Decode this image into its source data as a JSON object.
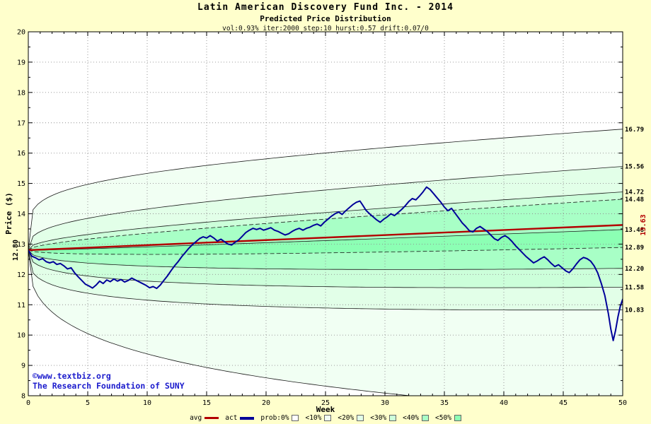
{
  "header": {
    "title": "Latin American Discovery Fund Inc. - 2014",
    "subtitle": "Predicted Price Distribution",
    "params": "vol:0.93% iter:2000 step:10 hurst:0.57 drift:0.07/0"
  },
  "watermark": {
    "line1": "©www.textbiz.org",
    "line2": "The Research Foundation of SUNY",
    "color": "#1c1ccd"
  },
  "chart_data": {
    "type": "line",
    "title": "Latin American Discovery Fund Inc. - 2014",
    "subtitle": "Predicted Price Distribution",
    "xlabel": "Week",
    "ylabel": "Price ($)",
    "xlim": [
      0,
      50
    ],
    "ylim": [
      8,
      20
    ],
    "x_ticks": [
      0,
      5,
      10,
      15,
      20,
      25,
      30,
      35,
      40,
      45,
      50
    ],
    "y_ticks": [
      8,
      9,
      10,
      11,
      12,
      13,
      14,
      15,
      16,
      17,
      18,
      19,
      20
    ],
    "grid": true,
    "legend_position": "bottom",
    "colors": {
      "page_bg": "#ffffcc",
      "plot_bg": "#ffffff",
      "grid": "#8f8f8f",
      "frame": "#000000"
    },
    "avg": {
      "label": "avg",
      "color": "#b30000",
      "start": 12.8,
      "end": 13.63,
      "start_label": "12.80",
      "end_label": "13.63"
    },
    "bands": {
      "line_color": "#1a1a1a",
      "fill_colors": [
        "#f1fff3",
        "#e2ffe8",
        "#ccffda",
        "#a8ffc6",
        "#8cffb4",
        "#a8ffc6",
        "#ccffda",
        "#e2ffe8",
        "#f1fff3"
      ],
      "curves": [
        {
          "end": 16.79,
          "exp": 0.18,
          "label": "16.79",
          "dashed": false
        },
        {
          "end": 15.56,
          "exp": 0.3,
          "label": "15.56",
          "dashed": false
        },
        {
          "end": 14.72,
          "exp": 0.4,
          "label": "14.72",
          "dashed": false
        },
        {
          "end": 14.48,
          "exp": 0.48,
          "label": "14.48",
          "dashed": true
        },
        {
          "end": 13.48,
          "exp": 0.6,
          "label": "13.48",
          "dashed": false
        },
        {
          "end": 12.89,
          "exp": 0.55,
          "label": "12.89",
          "dashed": true
        },
        {
          "end": 12.2,
          "exp": 0.45,
          "label": "12.20",
          "dashed": false
        },
        {
          "end": 11.58,
          "exp": 0.34,
          "label": "11.58",
          "dashed": false
        },
        {
          "end": 10.83,
          "exp": 0.27,
          "label": "10.83",
          "dashed": false
        },
        {
          "end": 7.43,
          "exp": 0.34,
          "label": null,
          "dashed": false
        }
      ]
    },
    "actual": {
      "label": "act",
      "color": "#000099",
      "points": [
        [
          0,
          12.8
        ],
        [
          0.3,
          12.6
        ],
        [
          0.6,
          12.55
        ],
        [
          0.9,
          12.48
        ],
        [
          1.2,
          12.52
        ],
        [
          1.5,
          12.42
        ],
        [
          1.8,
          12.38
        ],
        [
          2.1,
          12.42
        ],
        [
          2.4,
          12.33
        ],
        [
          2.7,
          12.36
        ],
        [
          3.0,
          12.28
        ],
        [
          3.3,
          12.18
        ],
        [
          3.6,
          12.22
        ],
        [
          3.9,
          12.05
        ],
        [
          4.2,
          11.92
        ],
        [
          4.5,
          11.8
        ],
        [
          4.8,
          11.68
        ],
        [
          5.1,
          11.62
        ],
        [
          5.4,
          11.55
        ],
        [
          5.7,
          11.65
        ],
        [
          6.0,
          11.78
        ],
        [
          6.3,
          11.7
        ],
        [
          6.6,
          11.82
        ],
        [
          6.9,
          11.76
        ],
        [
          7.2,
          11.85
        ],
        [
          7.5,
          11.78
        ],
        [
          7.8,
          11.83
        ],
        [
          8.1,
          11.75
        ],
        [
          8.4,
          11.8
        ],
        [
          8.7,
          11.88
        ],
        [
          9.0,
          11.82
        ],
        [
          9.3,
          11.76
        ],
        [
          9.6,
          11.7
        ],
        [
          9.9,
          11.64
        ],
        [
          10.2,
          11.56
        ],
        [
          10.5,
          11.6
        ],
        [
          10.8,
          11.54
        ],
        [
          11.1,
          11.65
        ],
        [
          11.4,
          11.8
        ],
        [
          11.7,
          11.95
        ],
        [
          12.0,
          12.12
        ],
        [
          12.3,
          12.28
        ],
        [
          12.6,
          12.42
        ],
        [
          12.9,
          12.58
        ],
        [
          13.2,
          12.72
        ],
        [
          13.5,
          12.86
        ],
        [
          13.8,
          12.98
        ],
        [
          14.1,
          13.08
        ],
        [
          14.4,
          13.18
        ],
        [
          14.7,
          13.24
        ],
        [
          15.0,
          13.2
        ],
        [
          15.3,
          13.28
        ],
        [
          15.6,
          13.2
        ],
        [
          15.9,
          13.1
        ],
        [
          16.2,
          13.16
        ],
        [
          16.5,
          13.08
        ],
        [
          16.8,
          13.0
        ],
        [
          17.1,
          12.97
        ],
        [
          17.4,
          13.06
        ],
        [
          17.7,
          13.14
        ],
        [
          18.0,
          13.26
        ],
        [
          18.3,
          13.38
        ],
        [
          18.6,
          13.46
        ],
        [
          18.9,
          13.52
        ],
        [
          19.2,
          13.48
        ],
        [
          19.5,
          13.52
        ],
        [
          19.8,
          13.46
        ],
        [
          20.1,
          13.5
        ],
        [
          20.4,
          13.54
        ],
        [
          20.7,
          13.46
        ],
        [
          21.0,
          13.42
        ],
        [
          21.3,
          13.36
        ],
        [
          21.6,
          13.3
        ],
        [
          21.9,
          13.34
        ],
        [
          22.2,
          13.42
        ],
        [
          22.5,
          13.48
        ],
        [
          22.8,
          13.52
        ],
        [
          23.1,
          13.46
        ],
        [
          23.4,
          13.52
        ],
        [
          23.7,
          13.56
        ],
        [
          24.0,
          13.62
        ],
        [
          24.3,
          13.66
        ],
        [
          24.6,
          13.6
        ],
        [
          24.9,
          13.72
        ],
        [
          25.2,
          13.82
        ],
        [
          25.5,
          13.92
        ],
        [
          25.8,
          14.0
        ],
        [
          26.1,
          14.06
        ],
        [
          26.4,
          13.98
        ],
        [
          26.7,
          14.1
        ],
        [
          27.0,
          14.2
        ],
        [
          27.3,
          14.3
        ],
        [
          27.6,
          14.38
        ],
        [
          27.9,
          14.42
        ],
        [
          28.1,
          14.3
        ],
        [
          28.4,
          14.12
        ],
        [
          28.7,
          14.0
        ],
        [
          29.0,
          13.9
        ],
        [
          29.3,
          13.8
        ],
        [
          29.6,
          13.72
        ],
        [
          29.9,
          13.82
        ],
        [
          30.2,
          13.9
        ],
        [
          30.5,
          14.0
        ],
        [
          30.8,
          13.94
        ],
        [
          31.1,
          14.04
        ],
        [
          31.4,
          14.14
        ],
        [
          31.7,
          14.26
        ],
        [
          32.0,
          14.4
        ],
        [
          32.3,
          14.5
        ],
        [
          32.6,
          14.46
        ],
        [
          32.9,
          14.58
        ],
        [
          33.2,
          14.72
        ],
        [
          33.5,
          14.88
        ],
        [
          33.8,
          14.8
        ],
        [
          34.1,
          14.66
        ],
        [
          34.4,
          14.52
        ],
        [
          34.7,
          14.38
        ],
        [
          35.0,
          14.22
        ],
        [
          35.3,
          14.1
        ],
        [
          35.6,
          14.18
        ],
        [
          35.9,
          14.02
        ],
        [
          36.2,
          13.86
        ],
        [
          36.5,
          13.7
        ],
        [
          36.8,
          13.58
        ],
        [
          37.1,
          13.44
        ],
        [
          37.4,
          13.4
        ],
        [
          37.7,
          13.52
        ],
        [
          38.0,
          13.58
        ],
        [
          38.3,
          13.5
        ],
        [
          38.6,
          13.42
        ],
        [
          38.9,
          13.3
        ],
        [
          39.2,
          13.18
        ],
        [
          39.5,
          13.12
        ],
        [
          39.8,
          13.22
        ],
        [
          40.1,
          13.28
        ],
        [
          40.4,
          13.2
        ],
        [
          40.7,
          13.08
        ],
        [
          41.0,
          12.94
        ],
        [
          41.3,
          12.82
        ],
        [
          41.6,
          12.7
        ],
        [
          41.9,
          12.58
        ],
        [
          42.2,
          12.48
        ],
        [
          42.5,
          12.38
        ],
        [
          42.8,
          12.44
        ],
        [
          43.1,
          12.52
        ],
        [
          43.4,
          12.58
        ],
        [
          43.7,
          12.48
        ],
        [
          44.0,
          12.36
        ],
        [
          44.3,
          12.26
        ],
        [
          44.6,
          12.32
        ],
        [
          44.9,
          12.22
        ],
        [
          45.2,
          12.12
        ],
        [
          45.5,
          12.06
        ],
        [
          45.8,
          12.18
        ],
        [
          46.1,
          12.34
        ],
        [
          46.4,
          12.48
        ],
        [
          46.7,
          12.56
        ],
        [
          47.0,
          12.52
        ],
        [
          47.3,
          12.44
        ],
        [
          47.6,
          12.28
        ],
        [
          47.9,
          12.05
        ],
        [
          48.2,
          11.7
        ],
        [
          48.5,
          11.3
        ],
        [
          48.8,
          10.7
        ],
        [
          49.0,
          10.2
        ],
        [
          49.2,
          9.82
        ],
        [
          49.4,
          10.15
        ],
        [
          49.6,
          10.6
        ],
        [
          49.8,
          10.95
        ],
        [
          50.0,
          11.18
        ]
      ]
    }
  },
  "legend": {
    "items": [
      {
        "label": "avg",
        "type": "line",
        "color": "#b30000",
        "thickness": 3
      },
      {
        "label": "act",
        "type": "line",
        "color": "#000099",
        "thickness": 4
      },
      {
        "label": "prob:0%",
        "type": "box",
        "color": "#ffffff"
      },
      {
        "label": "<10%",
        "type": "box",
        "color": "#f1fff3"
      },
      {
        "label": "<20%",
        "type": "box",
        "color": "#e2ffe8"
      },
      {
        "label": "<30%",
        "type": "box",
        "color": "#ccffda"
      },
      {
        "label": "<40%",
        "type": "box",
        "color": "#a8ffc6"
      },
      {
        "label": "<50%",
        "type": "box",
        "color": "#8cffb4"
      }
    ]
  }
}
